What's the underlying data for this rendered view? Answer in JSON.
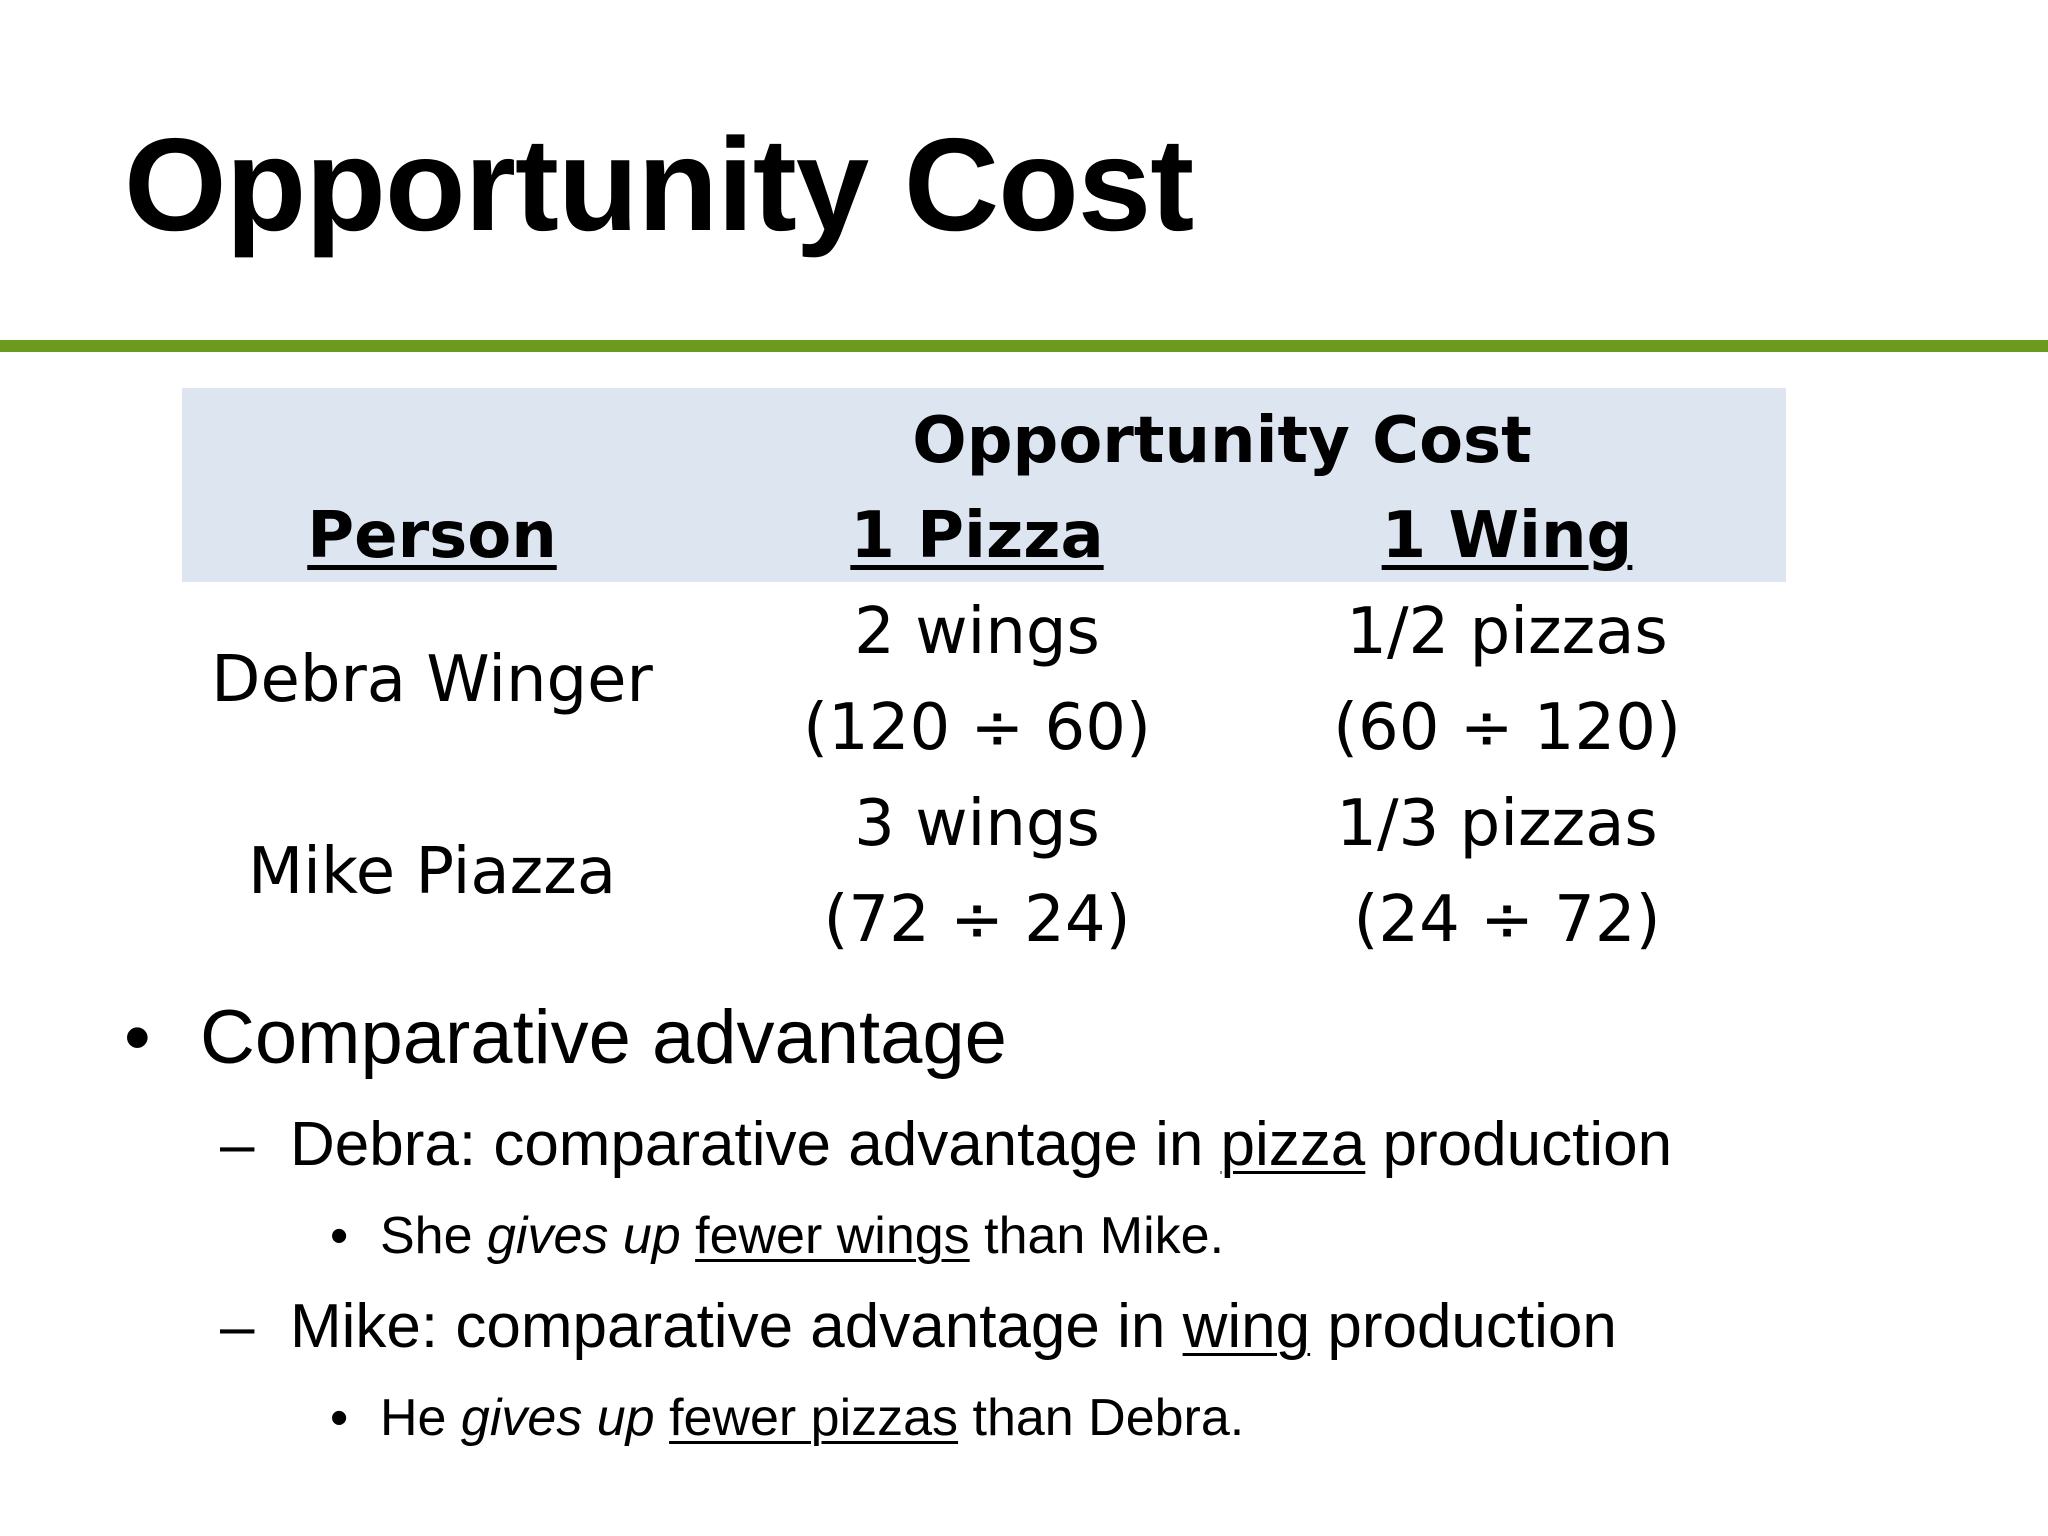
{
  "title": "Opportunity Cost",
  "colors": {
    "accent_rule": "#6b9a1e",
    "table_header_bg": "#dde5f1",
    "text": "#000000"
  },
  "table": {
    "group_header": "Opportunity Cost",
    "columns": [
      "Person",
      "1 Pizza",
      "1 Wing"
    ],
    "rows": [
      {
        "person": "Debra Winger",
        "pizza_cost": "2 wings",
        "pizza_calc": "(120 ÷ 60)",
        "wing_cost": "1/2 pizzas",
        "wing_calc": "(60 ÷ 120)"
      },
      {
        "person": "Mike Piazza",
        "pizza_cost": "3 wings",
        "pizza_calc": "(72 ÷ 24)",
        "wing_cost": "1/3 pizzas",
        "wing_calc": "(24 ÷ 72)"
      }
    ]
  },
  "bullets": {
    "level1_marker": "•",
    "level2_marker": "–",
    "level3_marker": "•",
    "heading": "Comparative advantage",
    "items": [
      {
        "pre": "Debra: comparative advantage in ",
        "emph": "pizza",
        "post": " production",
        "sub": {
          "pre": "She ",
          "italic": "gives up",
          "mid": " ",
          "underlined": "fewer wings",
          "post": " than Mike."
        }
      },
      {
        "pre": "Mike: comparative advantage in ",
        "emph": "wing",
        "post": " production",
        "sub": {
          "pre": "He ",
          "italic": "gives up",
          "mid": " ",
          "underlined": "fewer pizzas",
          "post": " than Debra."
        }
      }
    ]
  }
}
